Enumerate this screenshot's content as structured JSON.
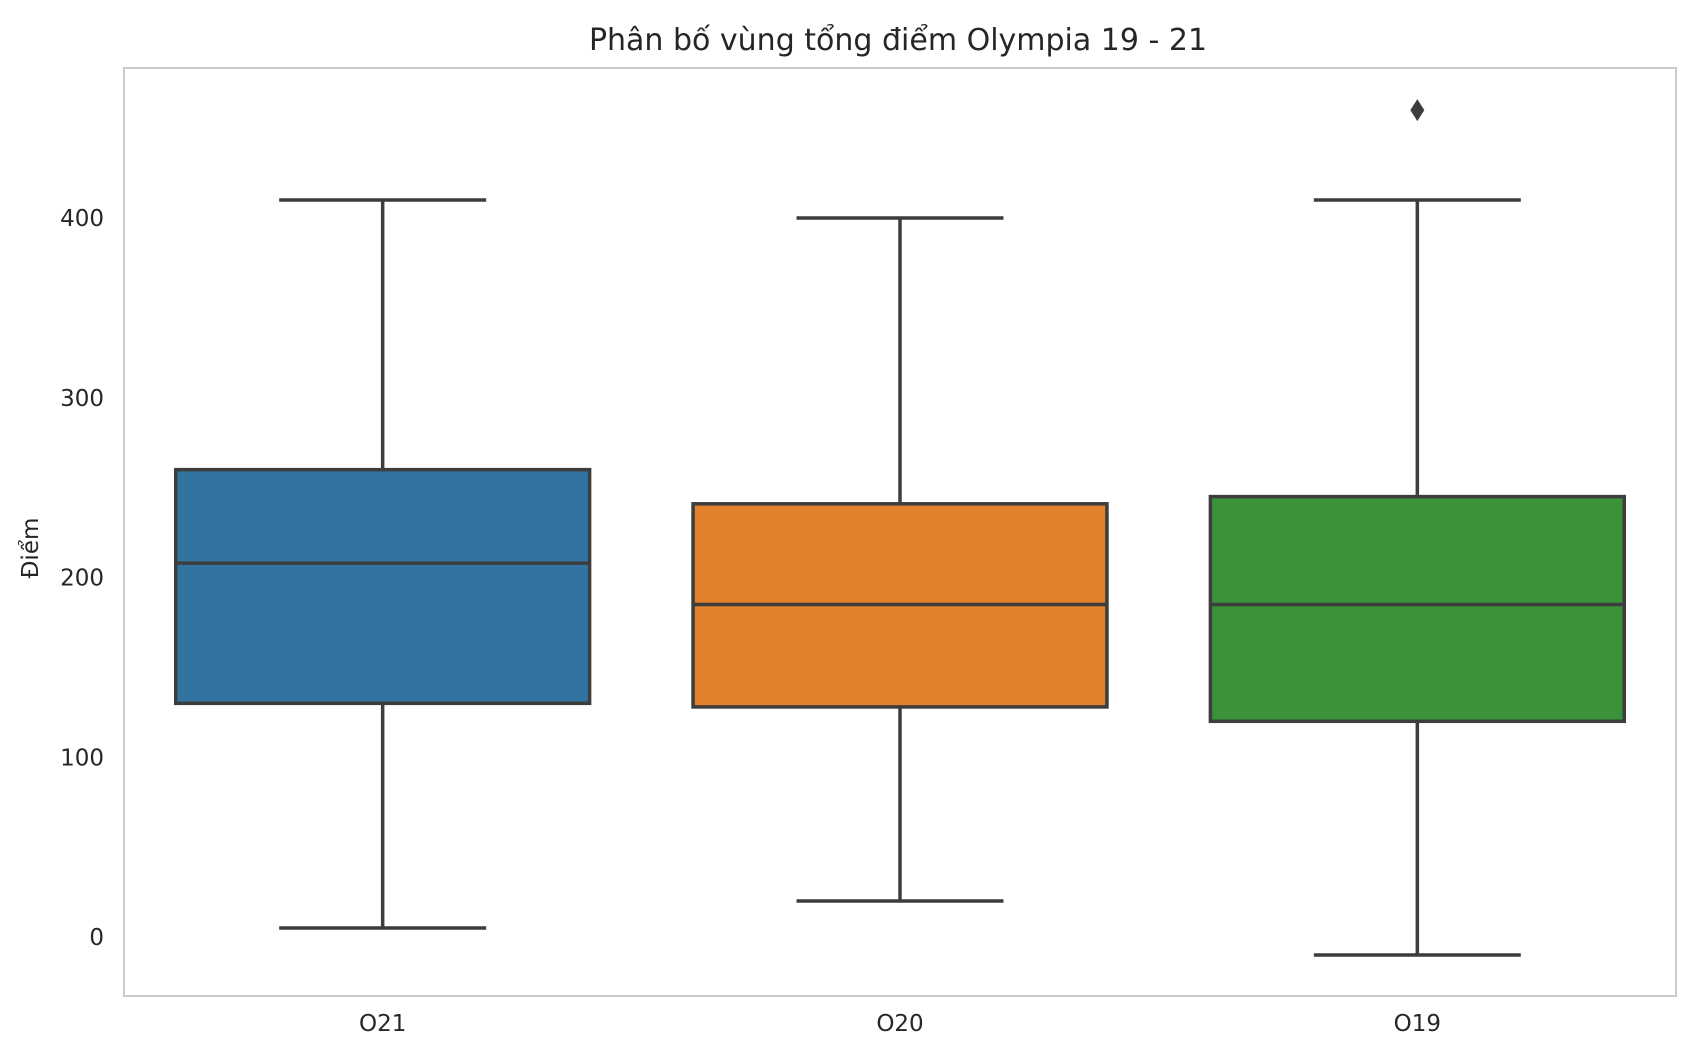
{
  "chart_data": {
    "type": "box",
    "title": "Phân bố vùng tổng điểm Olympia 19 - 21",
    "xlabel": "",
    "ylabel": "Điểm",
    "ylim": [
      -33,
      482
    ],
    "yticks": [
      0,
      100,
      200,
      300,
      400
    ],
    "grid": false,
    "categories": [
      "O21",
      "O20",
      "O19"
    ],
    "boxes": [
      {
        "category": "O21",
        "whisker_low": 5,
        "q1": 130,
        "median": 208,
        "q3": 260,
        "whisker_high": 410,
        "outliers": [],
        "color": "#3274a1"
      },
      {
        "category": "O20",
        "whisker_low": 20,
        "q1": 128,
        "median": 185,
        "q3": 241,
        "whisker_high": 400,
        "outliers": [],
        "color": "#e1812c"
      },
      {
        "category": "O19",
        "whisker_low": -10,
        "q1": 120,
        "median": 185,
        "q3": 245,
        "whisker_high": 410,
        "outliers": [
          460
        ],
        "color": "#3a923a"
      }
    ],
    "line_color": "#3d3d3d",
    "frame_color": "#cccccc"
  }
}
